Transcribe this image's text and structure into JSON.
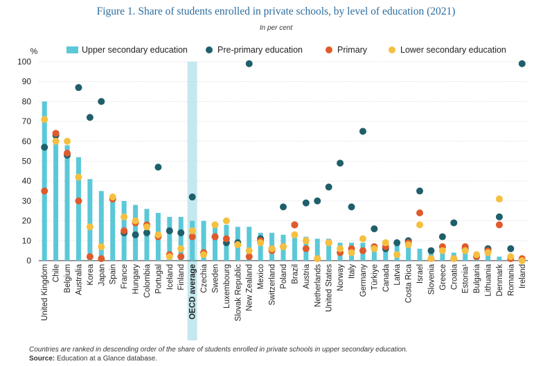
{
  "title": "Figure 1. Share of students enrolled in private schools, by level of education (2021)",
  "subtitle": "In per cent",
  "note": "Countries are ranked in descending order of the share of students enrolled in private schools in upper secondary education.",
  "source_label": "Source:",
  "source_text": " Education at a Glance database.",
  "colors": {
    "upper_secondary": "#5bc8d8",
    "pre_primary": "#1f5f6b",
    "primary": "#e05a2b",
    "lower_secondary": "#f5c040",
    "oecd_highlight": "#c4e8ef"
  },
  "chart_data": {
    "type": "bar",
    "ylabel": "%",
    "ylim": [
      0,
      100
    ],
    "yticks": [
      0,
      10,
      20,
      30,
      40,
      50,
      60,
      70,
      80,
      90,
      100
    ],
    "grid": true,
    "legend_position": "top",
    "highlight_category": "OECD average",
    "categories": [
      "United Kingdom",
      "Chile",
      "Belgium",
      "Australia",
      "Korea",
      "Japan",
      "Spain",
      "France",
      "Hungary",
      "Colombia",
      "Portugal",
      "Iceland",
      "Finland",
      "OECD average",
      "Czechia",
      "Sweden",
      "Luxembourg",
      "Slovak Republic",
      "New Zealand",
      "Mexico",
      "Switzerland",
      "Poland",
      "Brazil",
      "Austria",
      "Netherlands",
      "United States",
      "Norway",
      "Italy",
      "Germany",
      "Türkiye",
      "Canada",
      "Latvia",
      "Costa Rica",
      "Israel",
      "Slovenia",
      "Greece",
      "Croatia",
      "Estonia¹",
      "Bulgaria",
      "Lithuania",
      "Denmark",
      "Romania",
      "Ireland"
    ],
    "series": [
      {
        "name": "Upper secondary education",
        "type": "bar",
        "values": [
          80,
          65,
          58,
          52,
          41,
          35,
          33,
          30,
          28,
          26,
          24,
          22,
          22,
          20,
          20,
          19,
          18,
          17,
          17,
          14,
          14,
          13,
          13,
          12,
          11,
          11,
          9,
          9,
          9,
          8,
          8,
          8,
          7,
          6,
          6,
          5,
          4,
          4,
          3,
          3,
          2,
          2,
          1
        ]
      },
      {
        "name": "Pre-primary education",
        "type": "dot",
        "values": [
          57,
          63,
          53,
          87,
          72,
          80,
          31,
          14,
          13,
          14,
          47,
          15,
          14,
          32,
          4,
          12,
          9,
          9,
          99,
          11,
          6,
          27,
          18,
          29,
          30,
          37,
          49,
          27,
          65,
          16,
          6,
          9,
          10,
          35,
          5,
          12,
          19,
          6,
          2,
          6,
          22,
          6,
          99
        ]
      },
      {
        "name": "Primary",
        "type": "dot",
        "values": [
          35,
          64,
          54,
          30,
          2,
          1,
          31,
          15,
          19,
          18,
          12,
          3,
          2,
          12,
          4,
          12,
          11,
          8,
          2,
          10,
          5,
          7,
          18,
          6,
          1,
          9,
          4,
          6,
          5,
          7,
          7,
          null,
          9,
          24,
          1,
          7,
          1,
          7,
          2,
          5,
          18,
          1,
          1
        ]
      },
      {
        "name": "Lower secondary education",
        "type": "dot",
        "values": [
          71,
          60,
          60,
          42,
          17,
          7,
          32,
          22,
          20,
          17,
          13,
          2,
          6,
          15,
          3,
          18,
          20,
          8,
          5,
          9,
          6,
          7,
          13,
          10,
          1,
          9,
          6,
          4,
          11,
          6,
          9,
          3,
          8,
          18,
          1,
          5,
          1,
          5,
          3,
          4,
          31,
          2,
          0
        ]
      }
    ]
  }
}
